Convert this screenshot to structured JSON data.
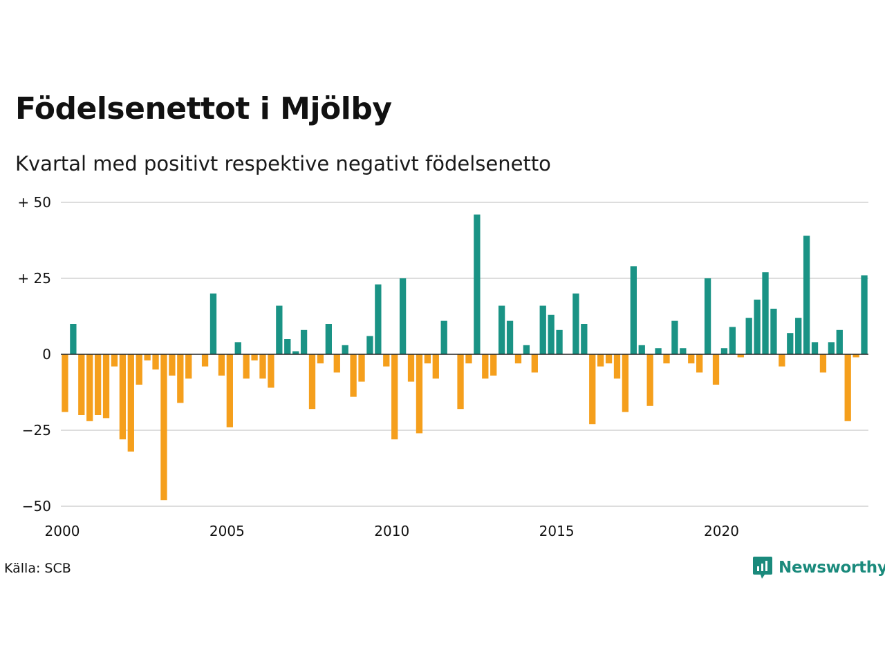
{
  "title": "Födelsenettot i Mjölby",
  "subtitle": "Kvartal med positivt respektive negativt födelsenetto",
  "source": "Källa: SCB",
  "brand": {
    "name": "Newsworthy",
    "icon": "newsworthy-logo-icon"
  },
  "colors": {
    "positive": "#1a9385",
    "negative": "#f59f1c",
    "grid": "#dddddd",
    "zero_line": "#222222"
  },
  "chart_data": {
    "type": "bar",
    "title": "Födelsenettot i Mjölby",
    "subtitle": "Kvartal med positivt respektive negativt födelsenetto",
    "ylim": [
      -50,
      50
    ],
    "y_ticks": [
      {
        "value": 50,
        "label": "+ 50"
      },
      {
        "value": 25,
        "label": "+ 25"
      },
      {
        "value": 0,
        "label": "0"
      },
      {
        "value": -25,
        "label": "−25"
      },
      {
        "value": -50,
        "label": "−50"
      }
    ],
    "x_ticks": [
      "2000",
      "2005",
      "2010",
      "2015",
      "2020"
    ],
    "x_start_year": 2000,
    "grid": true,
    "legend": "none",
    "series": [
      {
        "values": [
          -19,
          10,
          -20,
          -22,
          -20,
          -21,
          -4,
          -28,
          -32,
          -10,
          -2,
          -5,
          -48,
          -7,
          -16,
          -8,
          0,
          -4,
          20,
          -7,
          -24,
          4,
          -8,
          -2,
          -8,
          -11,
          16,
          5,
          1,
          8,
          -18,
          -3,
          10,
          -6,
          3,
          -14,
          -9,
          6,
          23,
          -4,
          -28,
          25,
          -9,
          -26,
          -3,
          -8,
          11,
          0,
          -18,
          -3,
          46,
          -8,
          -7,
          16,
          11,
          -3,
          3,
          -6,
          16,
          13,
          8,
          0,
          20,
          10,
          -23,
          -4,
          -3,
          -8,
          -19,
          29,
          3,
          -17,
          2,
          -3,
          11,
          2,
          -3,
          -6,
          25,
          -10,
          2,
          9,
          -1,
          12,
          18,
          27,
          15,
          -4,
          7,
          12,
          39,
          4,
          -6,
          4,
          8,
          -22,
          -1,
          26
        ]
      }
    ]
  }
}
